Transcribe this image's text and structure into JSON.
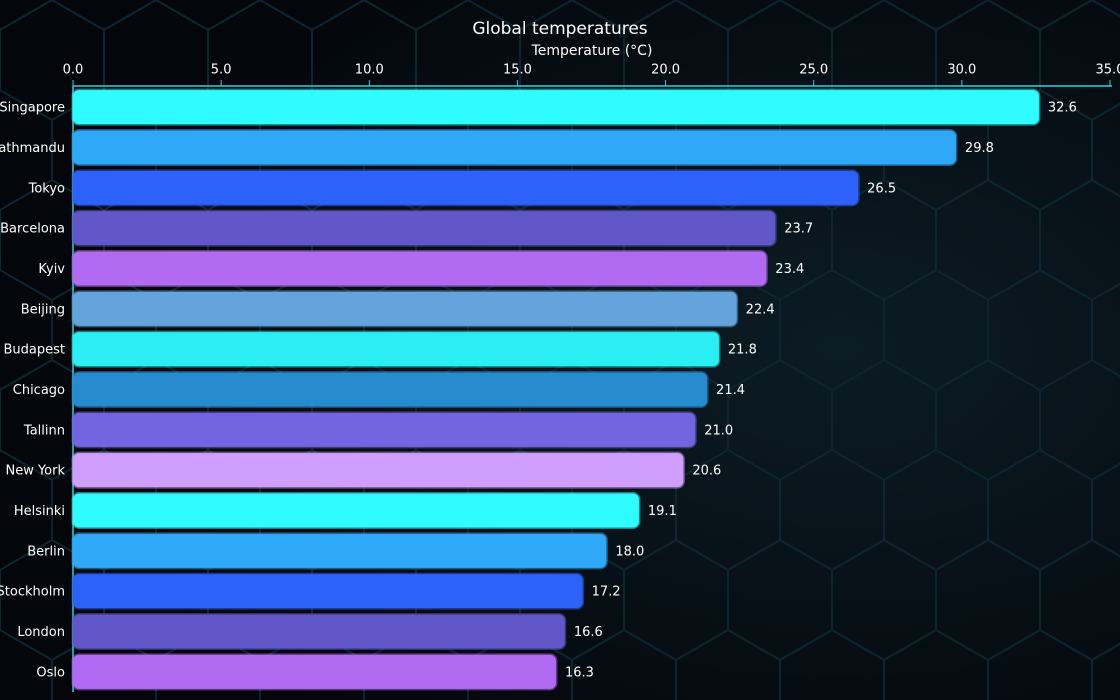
{
  "chart_data": {
    "type": "bar",
    "orientation": "horizontal",
    "title": "Global temperatures",
    "x_label": "Temperature (°C)",
    "categories": [
      "Singapore",
      "Kathmandu",
      "Tokyo",
      "Barcelona",
      "Kyiv",
      "Beijing",
      "Budapest",
      "Chicago",
      "Tallinn",
      "New York",
      "Helsinki",
      "Berlin",
      "Stockholm",
      "London",
      "Oslo"
    ],
    "values": [
      32.6,
      29.8,
      26.5,
      23.7,
      23.4,
      22.4,
      21.8,
      21.4,
      21,
      20.6,
      19.1,
      18,
      17.2,
      16.6,
      16.3
    ],
    "value_labels": [
      "32.6",
      "29.8",
      "26.5",
      "23.7",
      "23.4",
      "22.4",
      "21.8",
      "21.4",
      "21.0",
      "20.6",
      "19.1",
      "18.0",
      "17.2",
      "16.6",
      "16.3"
    ],
    "colors": [
      "#2ffcff",
      "#2ea8f7",
      "#2d62f8",
      "#6157c9",
      "#b36af2",
      "#64a3dc",
      "#2beef2",
      "#268ccf",
      "#7364e0",
      "#d09ffe",
      "#2ffcff",
      "#2ea8f7",
      "#2d62f8",
      "#6157c9",
      "#b36af2"
    ],
    "xlim": [
      0,
      35
    ],
    "xticks": [
      {
        "value": 0,
        "label": "0.0"
      },
      {
        "value": 5,
        "label": "5.0"
      },
      {
        "value": 10,
        "label": "10.0"
      },
      {
        "value": 15,
        "label": "15.0"
      },
      {
        "value": 20,
        "label": "20.0"
      },
      {
        "value": 25,
        "label": "25.0"
      },
      {
        "value": 30,
        "label": "30.0"
      },
      {
        "value": 35,
        "label": "35.0"
      }
    ]
  }
}
